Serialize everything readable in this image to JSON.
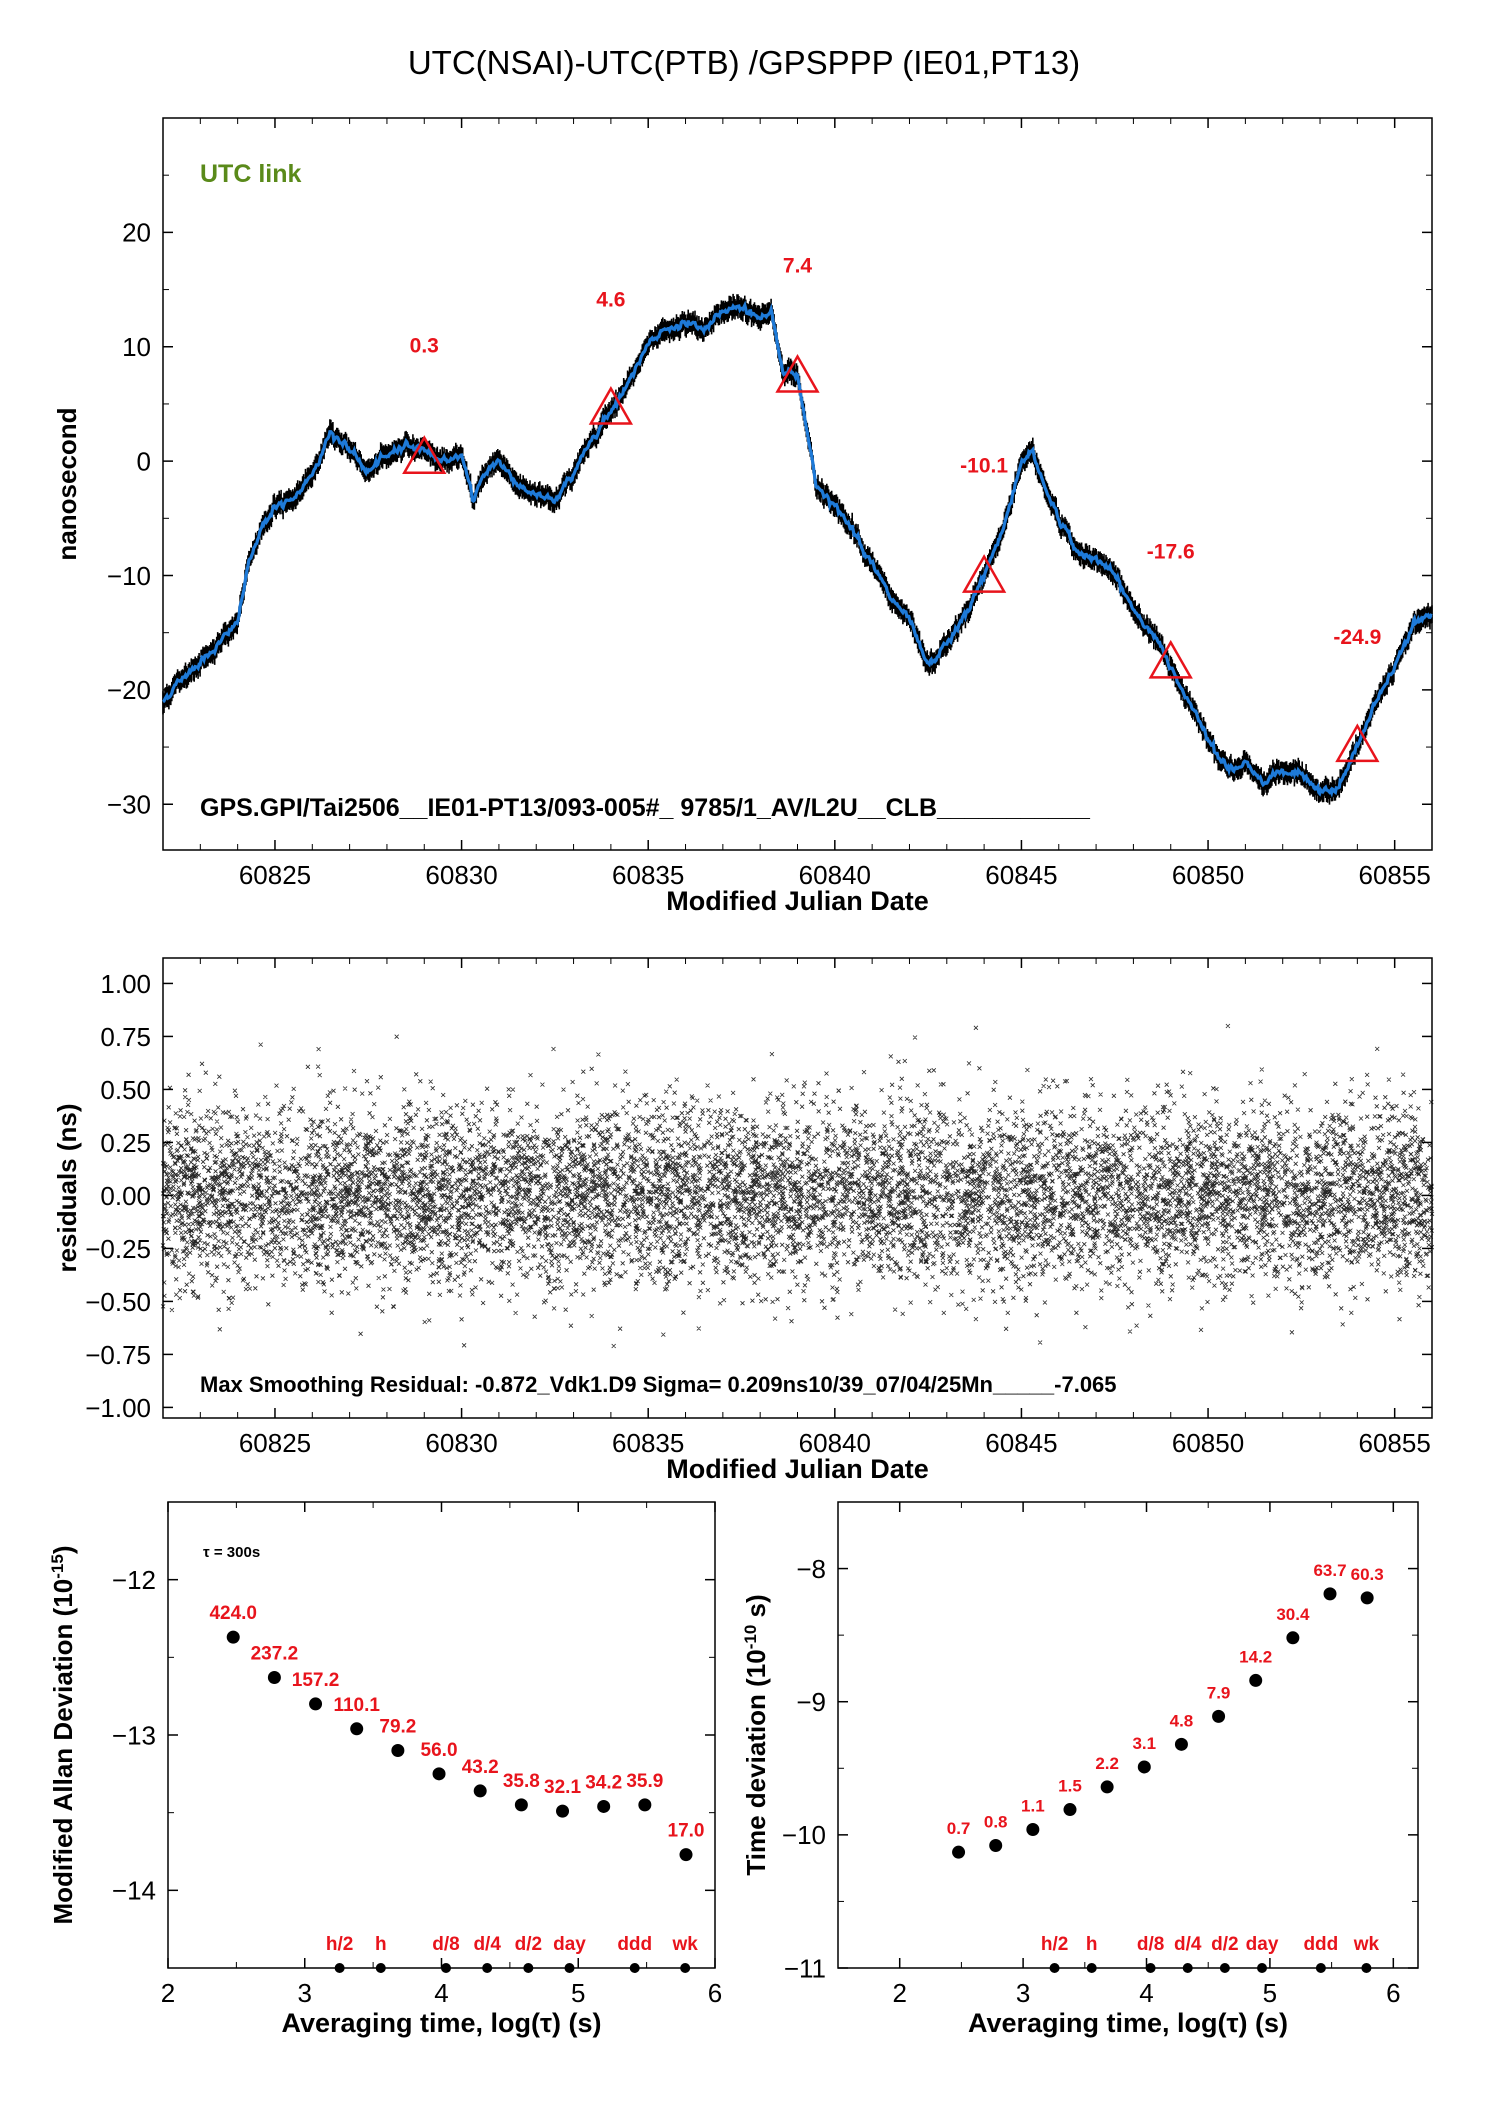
{
  "page": {
    "title": "UTC(NSAI)-UTC(PTB)  /GPSPPP  (IE01,PT13)"
  },
  "colors": {
    "smooth_line": "#1e7ad8",
    "raw_points": "#000000",
    "annotation_red": "#e8141c",
    "utc_link_green": "#5a8a1a"
  },
  "chart_data": [
    {
      "type": "line",
      "id": "main",
      "xlabel": "Modified Julian Date",
      "ylabel": "nanosecond",
      "xlim": [
        60822,
        60856
      ],
      "ylim": [
        -34,
        30
      ],
      "xticks": [
        60825,
        60830,
        60835,
        60840,
        60845,
        60850,
        60855
      ],
      "yticks": [
        20,
        10,
        0,
        -10,
        -20,
        -30
      ],
      "ytick_labels": [
        "20",
        "10",
        "0",
        "−10",
        "−20",
        "−30"
      ],
      "label_utc": "UTC link",
      "footer": "GPS.GPI/Tai2506__IE01-PT13/093-005#_  9785/1_AV/L2U__CLB___________",
      "x": [
        60822.0,
        60822.5,
        60823.0,
        60823.5,
        60824.0,
        60824.3,
        60824.6,
        60825.0,
        60825.5,
        60826.0,
        60826.5,
        60827.0,
        60827.5,
        60828.0,
        60828.5,
        60829.0,
        60829.5,
        60830.0,
        60830.3,
        60830.6,
        60831.0,
        60831.5,
        60832.0,
        60832.5,
        60833.0,
        60833.5,
        60834.0,
        60834.5,
        60835.0,
        60835.5,
        60836.0,
        60836.5,
        60837.0,
        60837.5,
        60838.0,
        60838.3,
        60838.6,
        60839.0,
        60839.5,
        60840.0,
        60840.5,
        60841.0,
        60841.5,
        60842.0,
        60842.5,
        60843.0,
        60843.5,
        60844.0,
        60844.5,
        60845.0,
        60845.3,
        60845.6,
        60846.0,
        60846.5,
        60847.0,
        60847.5,
        60848.0,
        60848.5,
        60849.0,
        60849.5,
        60850.0,
        60850.5,
        60851.0,
        60851.5,
        60852.0,
        60852.5,
        60853.0,
        60853.5,
        60854.0,
        60854.5,
        60855.0,
        60855.5,
        60856.0
      ],
      "y": [
        -21,
        -19,
        -17.5,
        -16,
        -14,
        -9,
        -6,
        -4,
        -3.5,
        -1,
        2.5,
        1,
        -1,
        0.5,
        1.5,
        1,
        0,
        0.5,
        -3.5,
        -1,
        0,
        -2,
        -3,
        -3.5,
        -1,
        2,
        4.5,
        7,
        10.5,
        11.5,
        12,
        11.5,
        13,
        13.5,
        12.5,
        13,
        8,
        7.5,
        -2,
        -4,
        -6,
        -9,
        -12,
        -14,
        -18,
        -16,
        -13.5,
        -10,
        -6,
        0,
        0.8,
        -2,
        -5,
        -8,
        -8.5,
        -10,
        -13,
        -15,
        -18,
        -21,
        -24,
        -27,
        -26.5,
        -28,
        -27,
        -27.5,
        -29,
        -28.5,
        -25,
        -21,
        -18,
        -14,
        -13.5
      ],
      "markers": [
        {
          "x": 60829,
          "y": 0.3,
          "label": "0.3",
          "label_y": 9.5
        },
        {
          "x": 60834,
          "y": 4.6,
          "label": "4.6",
          "label_y": 13.5
        },
        {
          "x": 60839,
          "y": 7.4,
          "label": "7.4",
          "label_y": 16.5
        },
        {
          "x": 60844,
          "y": -10.1,
          "label": "-10.1",
          "label_y": -1
        },
        {
          "x": 60849,
          "y": -17.6,
          "label": "-17.6",
          "label_y": -8.5
        },
        {
          "x": 60854,
          "y": -24.9,
          "label": "-24.9",
          "label_y": -16
        }
      ]
    },
    {
      "type": "scatter",
      "id": "residuals",
      "xlabel": "Modified Julian Date",
      "ylabel": "residuals (ns)",
      "xlim": [
        60822,
        60856
      ],
      "ylim": [
        -1.05,
        1.12
      ],
      "xticks": [
        60825,
        60830,
        60835,
        60840,
        60845,
        60850,
        60855
      ],
      "yticks": [
        1.0,
        0.75,
        0.5,
        0.25,
        0.0,
        -0.25,
        -0.5,
        -0.75,
        -1.0
      ],
      "ytick_labels": [
        "1.00",
        "0.75",
        "0.50",
        "0.25",
        "0.00",
        "−0.25",
        "−0.50",
        "−0.75",
        "−1.00"
      ],
      "sigma": 0.209,
      "footer": "Max Smoothing Residual: -0.872_Vdk1.D9  Sigma= 0.209ns10/39_07/04/25Mn_____-7.065"
    },
    {
      "type": "scatter",
      "id": "mdev",
      "xlabel": "Averaging time, log(τ) (s)",
      "ylabel": "Modified Allan Deviation (10",
      "ylabel_exp": "-15",
      "ylabel_end": ")",
      "xlim": [
        2,
        6
      ],
      "ylim": [
        -14.5,
        -11.5
      ],
      "xticks": [
        2,
        3,
        4,
        5,
        6
      ],
      "yticks": [
        -12,
        -13,
        -14
      ],
      "ytick_labels": [
        "−12",
        "−13",
        "−14"
      ],
      "tau_label": "τ = 300s",
      "x": [
        2.477,
        2.778,
        3.079,
        3.38,
        3.681,
        3.982,
        4.283,
        4.584,
        4.885,
        5.186,
        5.487,
        5.788
      ],
      "y": [
        -12.37,
        -12.63,
        -12.8,
        -12.96,
        -13.1,
        -13.25,
        -13.36,
        -13.45,
        -13.49,
        -13.46,
        -13.45,
        -13.77
      ],
      "labels": [
        "424.0",
        "237.2",
        "157.2",
        "110.1",
        "79.2",
        "56.0",
        "43.2",
        "35.8",
        "32.1",
        "34.2",
        "35.9",
        "17.0"
      ],
      "markers": [
        {
          "x": 3.255,
          "label": "h/2"
        },
        {
          "x": 3.556,
          "label": "h"
        },
        {
          "x": 4.033,
          "label": "d/8"
        },
        {
          "x": 4.334,
          "label": "d/4"
        },
        {
          "x": 4.635,
          "label": "d/2"
        },
        {
          "x": 4.936,
          "label": "day"
        },
        {
          "x": 5.413,
          "label": "ddd"
        },
        {
          "x": 5.782,
          "label": "wk"
        }
      ]
    },
    {
      "type": "scatter",
      "id": "tdev",
      "xlabel": "Averaging time, log(τ) (s)",
      "ylabel": "Time deviation (10",
      "ylabel_exp": "-10",
      "ylabel_end": " s)",
      "xlim": [
        1.5,
        6.2
      ],
      "ylim": [
        -11,
        -7.5
      ],
      "xticks": [
        2,
        3,
        4,
        5,
        6
      ],
      "yticks": [
        -8,
        -9,
        -10,
        -11
      ],
      "ytick_labels": [
        "−8",
        "−9",
        "−10",
        "−11"
      ],
      "x": [
        2.477,
        2.778,
        3.079,
        3.38,
        3.681,
        3.982,
        4.283,
        4.584,
        4.885,
        5.186,
        5.487,
        5.788
      ],
      "y": [
        -10.13,
        -10.08,
        -9.96,
        -9.81,
        -9.64,
        -9.49,
        -9.32,
        -9.11,
        -8.84,
        -8.52,
        -8.19,
        -8.22
      ],
      "labels": [
        "0.7",
        "0.8",
        "1.1",
        "1.5",
        "2.2",
        "3.1",
        "4.8",
        "7.9",
        "14.2",
        "30.4",
        "63.7",
        "60.3"
      ],
      "markers": [
        {
          "x": 3.255,
          "label": "h/2"
        },
        {
          "x": 3.556,
          "label": "h"
        },
        {
          "x": 4.033,
          "label": "d/8"
        },
        {
          "x": 4.334,
          "label": "d/4"
        },
        {
          "x": 4.635,
          "label": "d/2"
        },
        {
          "x": 4.936,
          "label": "day"
        },
        {
          "x": 5.413,
          "label": "ddd"
        },
        {
          "x": 5.782,
          "label": "wk"
        }
      ]
    }
  ]
}
